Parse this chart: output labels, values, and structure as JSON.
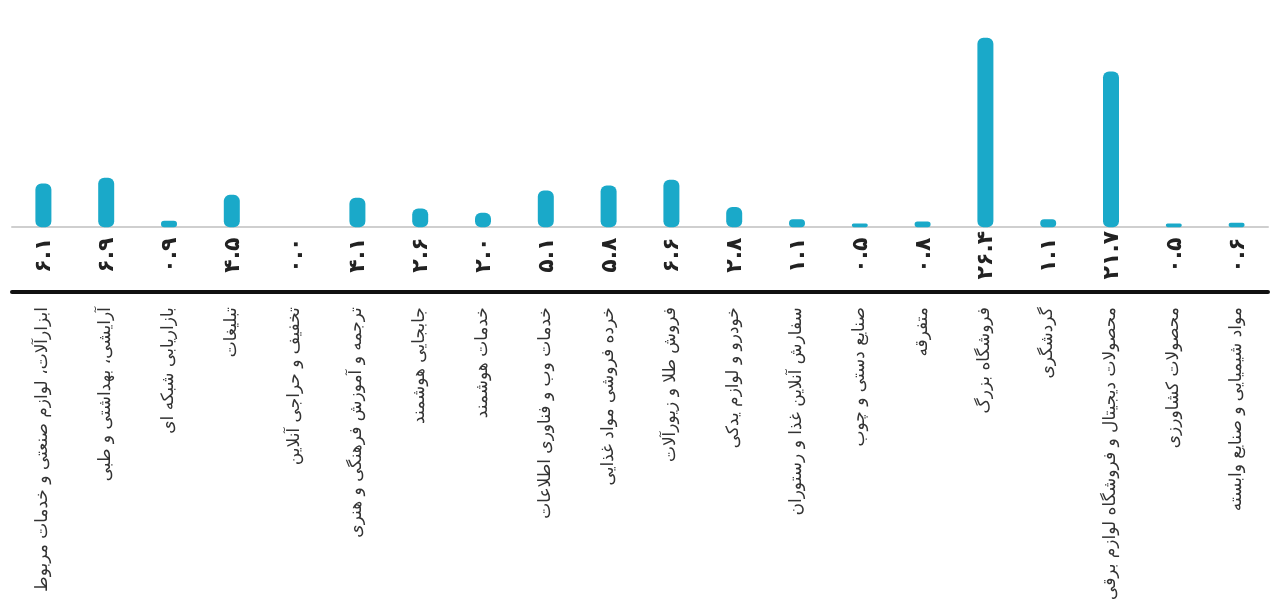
{
  "chart_data": {
    "type": "bar",
    "categories": [
      "ابزارآلات، لوازم صنعتی و خدمات مربوط",
      "آرایشی، بهداشتی و طبی",
      "بازاریابی شبکه ای",
      "تبلیغات",
      "تخفیف و حراجی آنلاین",
      "ترجمه و آموزش فرهنگی و هنری",
      "جابجایی هوشمند",
      "خدمات هوشمند",
      "خدمات وب و فناوری اطلاعات",
      "خرده فروشی مواد غذایی",
      "فروش طلا و زیورآلات",
      "خودرو و لوازم یدکی",
      "سفارش آنلاین غذا و رستوران",
      "صنایع دستی و چوب",
      "متفرقه",
      "فروشگاه بزرگ",
      "گردشگری",
      "محصولات دیجیتال و فروشگاه لوازم برقی",
      "محصولات کشاورزی",
      "مواد شیمیایی و صنایع وابسته"
    ],
    "values": [
      6.1,
      6.9,
      0.9,
      4.5,
      0.0,
      4.1,
      2.6,
      2.0,
      5.1,
      5.8,
      6.6,
      2.8,
      1.1,
      0.5,
      0.8,
      26.4,
      1.1,
      21.7,
      0.5,
      0.6
    ],
    "value_labels": [
      "۶.۱",
      "۶.۹",
      "۰.۹",
      "۴.۵",
      "۰.۰",
      "۴.۱",
      "۲.۶",
      "۲.۰",
      "۵.۱",
      "۵.۸",
      "۶.۶",
      "۲.۸",
      "۱.۱",
      "۰.۵",
      "۰.۸",
      "۲۶.۴",
      "۱.۱",
      "۲۱.۷",
      "۰.۵",
      "۰.۶"
    ],
    "color": "#1aa9c9"
  }
}
